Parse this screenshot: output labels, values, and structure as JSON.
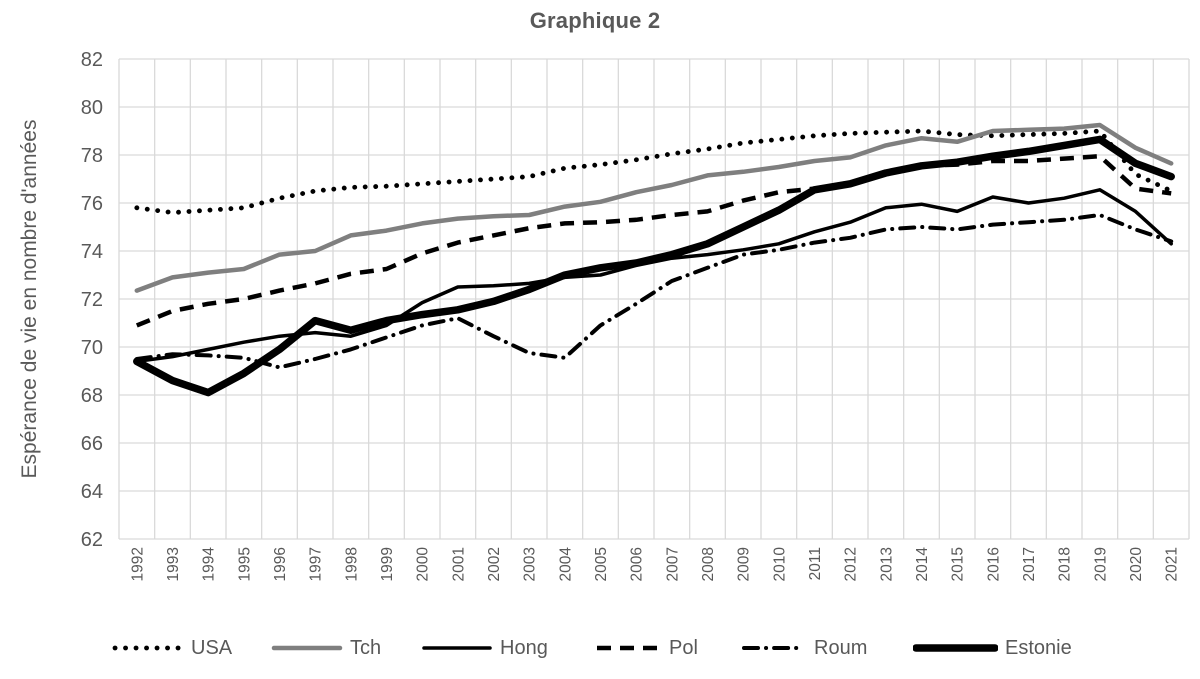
{
  "title": "Graphique 2",
  "colors": {
    "text": "#595959",
    "gridline": "#d9d9d9",
    "series_gray": "#7f7f7f",
    "series_black": "#000000",
    "background": "#ffffff"
  },
  "chart_data": {
    "type": "line",
    "title": "Graphique 2",
    "xlabel": "",
    "ylabel": "Espérance de vie en nombre d'années",
    "ylim": [
      62,
      82
    ],
    "ytick_step": 2,
    "grid": true,
    "legend_position": "bottom",
    "x": [
      1992,
      1993,
      1994,
      1995,
      1996,
      1997,
      1998,
      1999,
      2000,
      2001,
      2002,
      2003,
      2004,
      2005,
      2006,
      2007,
      2008,
      2009,
      2010,
      2011,
      2012,
      2013,
      2014,
      2015,
      2016,
      2017,
      2018,
      2019,
      2020,
      2021
    ],
    "series": [
      {
        "name": "USA",
        "style": "dotted",
        "color": "#000000",
        "width": 4.8,
        "values": [
          75.8,
          75.6,
          75.7,
          75.8,
          76.2,
          76.5,
          76.65,
          76.7,
          76.8,
          76.9,
          77.0,
          77.1,
          77.45,
          77.6,
          77.8,
          78.05,
          78.25,
          78.5,
          78.65,
          78.8,
          78.9,
          78.95,
          79.0,
          78.85,
          78.8,
          78.85,
          78.9,
          79.0,
          77.2,
          76.5
        ]
      },
      {
        "name": "Tch",
        "style": "solid",
        "color": "#7f7f7f",
        "width": 4.5,
        "values": [
          72.35,
          72.9,
          73.1,
          73.25,
          73.85,
          74.0,
          74.65,
          74.85,
          75.15,
          75.35,
          75.45,
          75.5,
          75.85,
          76.05,
          76.45,
          76.75,
          77.15,
          77.3,
          77.5,
          77.75,
          77.9,
          78.4,
          78.7,
          78.55,
          79.0,
          79.05,
          79.1,
          79.25,
          78.3,
          77.65
        ]
      },
      {
        "name": "Hong",
        "style": "solid",
        "color": "#000000",
        "width": 3.5,
        "values": [
          69.4,
          69.6,
          69.9,
          70.2,
          70.45,
          70.6,
          70.45,
          70.9,
          71.85,
          72.5,
          72.55,
          72.65,
          72.9,
          73.0,
          73.4,
          73.7,
          73.85,
          74.05,
          74.3,
          74.8,
          75.2,
          75.8,
          75.95,
          75.65,
          76.25,
          76.0,
          76.2,
          76.55,
          75.65,
          74.3
        ]
      },
      {
        "name": "Pol",
        "style": "dashed",
        "color": "#000000",
        "width": 4.5,
        "values": [
          70.9,
          71.5,
          71.8,
          72.0,
          72.35,
          72.65,
          73.05,
          73.25,
          73.9,
          74.35,
          74.65,
          74.95,
          75.15,
          75.2,
          75.3,
          75.5,
          75.65,
          76.1,
          76.45,
          76.6,
          76.85,
          77.25,
          77.55,
          77.6,
          77.75,
          77.75,
          77.85,
          77.95,
          76.6,
          76.4
        ]
      },
      {
        "name": "Roum",
        "style": "dashdot",
        "color": "#000000",
        "width": 4,
        "values": [
          69.5,
          69.7,
          69.65,
          69.55,
          69.15,
          69.5,
          69.9,
          70.4,
          70.9,
          71.2,
          70.45,
          69.75,
          69.55,
          70.9,
          71.8,
          72.75,
          73.3,
          73.85,
          74.05,
          74.35,
          74.55,
          74.9,
          75.0,
          74.9,
          75.1,
          75.2,
          75.3,
          75.5,
          74.9,
          74.4
        ]
      },
      {
        "name": "Estonie",
        "style": "solid",
        "color": "#000000",
        "width": 7.5,
        "values": [
          69.4,
          68.6,
          68.1,
          68.9,
          69.9,
          71.1,
          70.7,
          71.1,
          71.35,
          71.55,
          71.9,
          72.4,
          73.0,
          73.3,
          73.5,
          73.85,
          74.3,
          75.0,
          75.7,
          76.55,
          76.8,
          77.25,
          77.55,
          77.7,
          77.95,
          78.15,
          78.4,
          78.65,
          77.65,
          77.1
        ]
      }
    ]
  },
  "legend": {
    "items": [
      "USA",
      "Tch",
      "Hong",
      "Pol",
      "Roum",
      "Estonie"
    ]
  }
}
